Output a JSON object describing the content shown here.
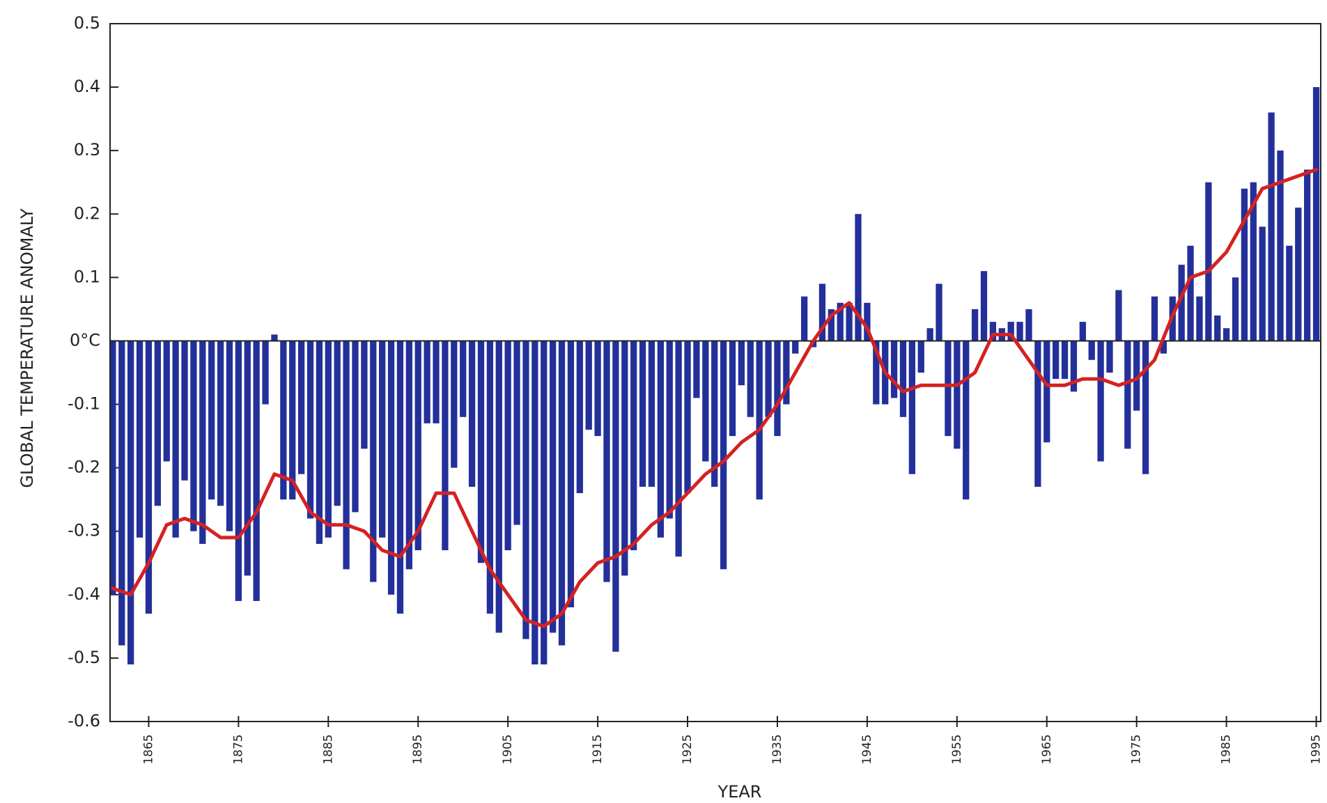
{
  "chart_data": {
    "type": "bar",
    "xlabel": "YEAR",
    "ylabel": "GLOBAL TEMPERATURE ANOMALY",
    "color": "#23309a",
    "xlim": [
      1860.7,
      1995.5
    ],
    "ylim": [
      -0.6,
      0.5
    ],
    "xticks": [
      1865,
      1875,
      1885,
      1895,
      1905,
      1915,
      1925,
      1935,
      1945,
      1955,
      1965,
      1975,
      1985,
      1995
    ],
    "yticks": [
      0.5,
      0.4,
      0.3,
      0.2,
      0.1,
      {
        "value": 0,
        "label": "0°C"
      },
      -0.1,
      -0.2,
      -0.3,
      -0.4,
      -0.5,
      -0.6
    ],
    "x": [
      1861,
      1862,
      1863,
      1864,
      1865,
      1866,
      1867,
      1868,
      1869,
      1870,
      1871,
      1872,
      1873,
      1874,
      1875,
      1876,
      1877,
      1878,
      1879,
      1880,
      1881,
      1882,
      1883,
      1884,
      1885,
      1886,
      1887,
      1888,
      1889,
      1890,
      1891,
      1892,
      1893,
      1894,
      1895,
      1896,
      1897,
      1898,
      1899,
      1900,
      1901,
      1902,
      1903,
      1904,
      1905,
      1906,
      1907,
      1908,
      1909,
      1910,
      1911,
      1912,
      1913,
      1914,
      1915,
      1916,
      1917,
      1918,
      1919,
      1920,
      1921,
      1922,
      1923,
      1924,
      1925,
      1926,
      1927,
      1928,
      1929,
      1930,
      1931,
      1932,
      1933,
      1934,
      1935,
      1936,
      1937,
      1938,
      1939,
      1940,
      1941,
      1942,
      1943,
      1944,
      1945,
      1946,
      1947,
      1948,
      1949,
      1950,
      1951,
      1952,
      1953,
      1954,
      1955,
      1956,
      1957,
      1958,
      1959,
      1960,
      1961,
      1962,
      1963,
      1964,
      1965,
      1966,
      1967,
      1968,
      1969,
      1970,
      1971,
      1972,
      1973,
      1974,
      1975,
      1976,
      1977,
      1978,
      1979,
      1980,
      1981,
      1982,
      1983,
      1984,
      1985,
      1986,
      1987,
      1988,
      1989,
      1990,
      1991,
      1992,
      1993,
      1994,
      1995
    ],
    "values": [
      -0.4,
      -0.48,
      -0.51,
      -0.31,
      -0.43,
      -0.26,
      -0.19,
      -0.31,
      -0.22,
      -0.3,
      -0.32,
      -0.25,
      -0.26,
      -0.3,
      -0.41,
      -0.37,
      -0.41,
      -0.1,
      0.01,
      -0.25,
      -0.25,
      -0.21,
      -0.28,
      -0.32,
      -0.31,
      -0.26,
      -0.36,
      -0.27,
      -0.17,
      -0.38,
      -0.31,
      -0.4,
      -0.43,
      -0.36,
      -0.33,
      -0.13,
      -0.13,
      -0.33,
      -0.2,
      -0.12,
      -0.23,
      -0.35,
      -0.43,
      -0.46,
      -0.33,
      -0.29,
      -0.47,
      -0.51,
      -0.51,
      -0.46,
      -0.48,
      -0.42,
      -0.24,
      -0.14,
      -0.15,
      -0.38,
      -0.49,
      -0.37,
      -0.33,
      -0.23,
      -0.23,
      -0.31,
      -0.28,
      -0.34,
      -0.24,
      -0.09,
      -0.19,
      -0.23,
      -0.36,
      -0.15,
      -0.07,
      -0.12,
      -0.25,
      -0.12,
      -0.15,
      -0.1,
      -0.02,
      0.07,
      -0.01,
      0.09,
      0.05,
      0.06,
      0.06,
      0.2,
      0.06,
      -0.1,
      -0.1,
      -0.09,
      -0.12,
      -0.21,
      -0.05,
      0.02,
      0.09,
      -0.15,
      -0.17,
      -0.25,
      0.05,
      0.11,
      0.03,
      0.02,
      0.03,
      0.03,
      0.05,
      -0.23,
      -0.16,
      -0.06,
      -0.06,
      -0.08,
      0.03,
      -0.03,
      -0.19,
      -0.05,
      0.08,
      -0.17,
      -0.11,
      -0.21,
      0.07,
      -0.02,
      0.07,
      0.12,
      0.15,
      0.07,
      0.25,
      0.04,
      0.02,
      0.1,
      0.24,
      0.25,
      0.18,
      0.36,
      0.3,
      0.15,
      0.21,
      0.27,
      0.4
    ],
    "line": {
      "type": "line",
      "color": "#d42222",
      "x": [
        1861,
        1863,
        1865,
        1867,
        1869,
        1871,
        1873,
        1875,
        1877,
        1879,
        1881,
        1883,
        1885,
        1887,
        1889,
        1891,
        1893,
        1895,
        1897,
        1899,
        1901,
        1903,
        1905,
        1907,
        1909,
        1911,
        1913,
        1915,
        1917,
        1919,
        1921,
        1923,
        1925,
        1927,
        1929,
        1931,
        1933,
        1935,
        1937,
        1939,
        1941,
        1943,
        1945,
        1947,
        1949,
        1951,
        1953,
        1955,
        1957,
        1959,
        1961,
        1963,
        1965,
        1967,
        1969,
        1971,
        1973,
        1975,
        1977,
        1979,
        1981,
        1983,
        1985,
        1987,
        1989,
        1991,
        1993,
        1995
      ],
      "values": [
        -0.39,
        -0.4,
        -0.35,
        -0.29,
        -0.28,
        -0.29,
        -0.31,
        -0.31,
        -0.27,
        -0.21,
        -0.22,
        -0.27,
        -0.29,
        -0.29,
        -0.3,
        -0.33,
        -0.34,
        -0.3,
        -0.24,
        -0.24,
        -0.3,
        -0.36,
        -0.4,
        -0.44,
        -0.45,
        -0.43,
        -0.38,
        -0.35,
        -0.34,
        -0.32,
        -0.29,
        -0.27,
        -0.24,
        -0.21,
        -0.19,
        -0.16,
        -0.14,
        -0.1,
        -0.05,
        0.0,
        0.04,
        0.06,
        0.02,
        -0.05,
        -0.08,
        -0.07,
        -0.07,
        -0.07,
        -0.05,
        0.01,
        0.01,
        -0.03,
        -0.07,
        -0.07,
        -0.06,
        -0.06,
        -0.07,
        -0.06,
        -0.03,
        0.04,
        0.1,
        0.11,
        0.14,
        0.19,
        0.24,
        0.25,
        0.26,
        0.27
      ]
    }
  }
}
